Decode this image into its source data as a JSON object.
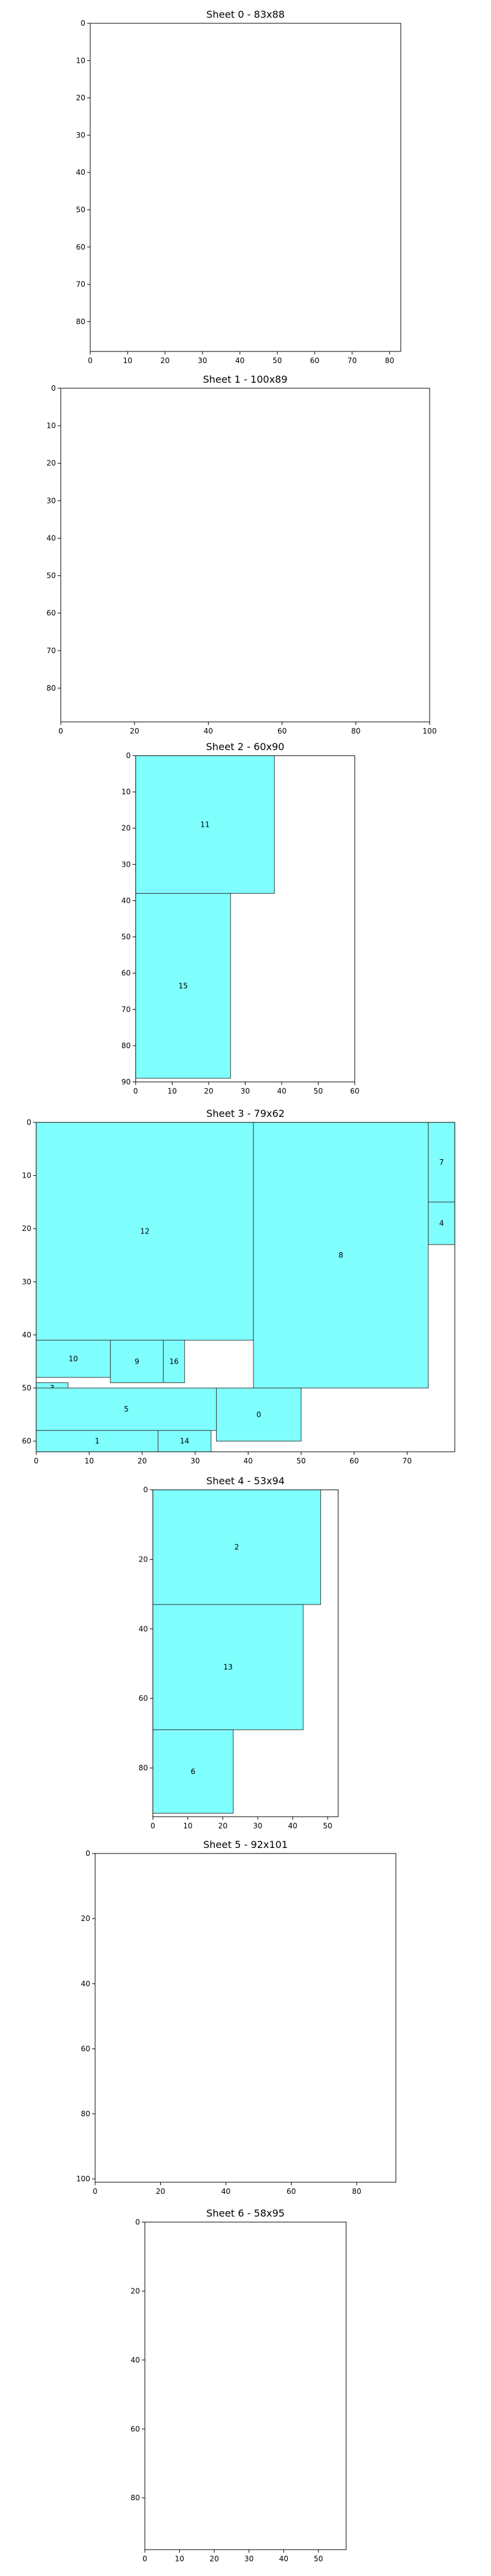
{
  "chart_data": [
    {
      "type": "rectangles",
      "title": "Sheet 0 - 83x88",
      "xlim": [
        0,
        83
      ],
      "ylim": [
        0,
        88
      ],
      "y_inverted": true,
      "grid": false,
      "xticks": [
        0,
        10,
        20,
        30,
        40,
        50,
        60,
        70,
        80
      ],
      "yticks": [
        0,
        10,
        20,
        30,
        40,
        50,
        60,
        70,
        80
      ],
      "pieces": []
    },
    {
      "type": "rectangles",
      "title": "Sheet 1 - 100x89",
      "xlim": [
        0,
        100
      ],
      "ylim": [
        0,
        89
      ],
      "y_inverted": true,
      "grid": false,
      "xticks": [
        0,
        20,
        40,
        60,
        80,
        100
      ],
      "yticks": [
        0,
        10,
        20,
        30,
        40,
        50,
        60,
        70,
        80
      ],
      "pieces": []
    },
    {
      "type": "rectangles",
      "title": "Sheet 2 - 60x90",
      "xlim": [
        0,
        60
      ],
      "ylim": [
        0,
        90
      ],
      "y_inverted": true,
      "grid": false,
      "xticks": [
        0,
        10,
        20,
        30,
        40,
        50,
        60
      ],
      "yticks": [
        0,
        10,
        20,
        30,
        40,
        50,
        60,
        70,
        80,
        90
      ],
      "pieces": [
        {
          "id": "11",
          "x": 0,
          "y": 0,
          "w": 38,
          "h": 38
        },
        {
          "id": "15",
          "x": 0,
          "y": 38,
          "w": 26,
          "h": 51
        }
      ]
    },
    {
      "type": "rectangles",
      "title": "Sheet 3 - 79x62",
      "xlim": [
        0,
        79
      ],
      "ylim": [
        0,
        62
      ],
      "y_inverted": true,
      "grid": false,
      "xticks": [
        0,
        10,
        20,
        30,
        40,
        50,
        60,
        70
      ],
      "yticks": [
        0,
        10,
        20,
        30,
        40,
        50,
        60
      ],
      "pieces": [
        {
          "id": "12",
          "x": 0,
          "y": 0,
          "w": 41,
          "h": 41
        },
        {
          "id": "8",
          "x": 41,
          "y": 0,
          "w": 33,
          "h": 50
        },
        {
          "id": "7",
          "x": 74,
          "y": 0,
          "w": 5,
          "h": 15
        },
        {
          "id": "4",
          "x": 74,
          "y": 15,
          "w": 5,
          "h": 8
        },
        {
          "id": "10",
          "x": 0,
          "y": 41,
          "w": 14,
          "h": 7
        },
        {
          "id": "9",
          "x": 14,
          "y": 41,
          "w": 10,
          "h": 8
        },
        {
          "id": "16",
          "x": 24,
          "y": 41,
          "w": 4,
          "h": 8
        },
        {
          "id": "3",
          "x": 0,
          "y": 49,
          "w": 6,
          "h": 2
        },
        {
          "id": "5",
          "x": 0,
          "y": 50,
          "w": 34,
          "h": 8
        },
        {
          "id": "0",
          "x": 34,
          "y": 50,
          "w": 16,
          "h": 10
        },
        {
          "id": "1",
          "x": 0,
          "y": 58,
          "w": 23,
          "h": 4
        },
        {
          "id": "14",
          "x": 23,
          "y": 58,
          "w": 10,
          "h": 4
        }
      ]
    },
    {
      "type": "rectangles",
      "title": "Sheet 4 - 53x94",
      "xlim": [
        0,
        53
      ],
      "ylim": [
        0,
        94
      ],
      "y_inverted": true,
      "grid": false,
      "xticks": [
        0,
        10,
        20,
        30,
        40,
        50
      ],
      "yticks": [
        0,
        20,
        40,
        60,
        80
      ],
      "pieces": [
        {
          "id": "2",
          "x": 0,
          "y": 0,
          "w": 48,
          "h": 33
        },
        {
          "id": "13",
          "x": 0,
          "y": 33,
          "w": 43,
          "h": 36
        },
        {
          "id": "6",
          "x": 0,
          "y": 69,
          "w": 23,
          "h": 24
        }
      ]
    },
    {
      "type": "rectangles",
      "title": "Sheet 5 - 92x101",
      "xlim": [
        0,
        92
      ],
      "ylim": [
        0,
        101
      ],
      "y_inverted": true,
      "grid": false,
      "xticks": [
        0,
        20,
        40,
        60,
        80
      ],
      "yticks": [
        0,
        20,
        40,
        60,
        80,
        100
      ],
      "pieces": []
    },
    {
      "type": "rectangles",
      "title": "Sheet 6 - 58x95",
      "xlim": [
        0,
        58
      ],
      "ylim": [
        0,
        95
      ],
      "y_inverted": true,
      "grid": false,
      "xticks": [
        0,
        10,
        20,
        30,
        40,
        50
      ],
      "yticks": [
        0,
        20,
        40,
        60,
        80
      ],
      "pieces": []
    }
  ],
  "colors": {
    "piece_fill": "#80ffff",
    "piece_stroke": "#3a3a3a",
    "axis": "#000000",
    "background": "#ffffff"
  }
}
